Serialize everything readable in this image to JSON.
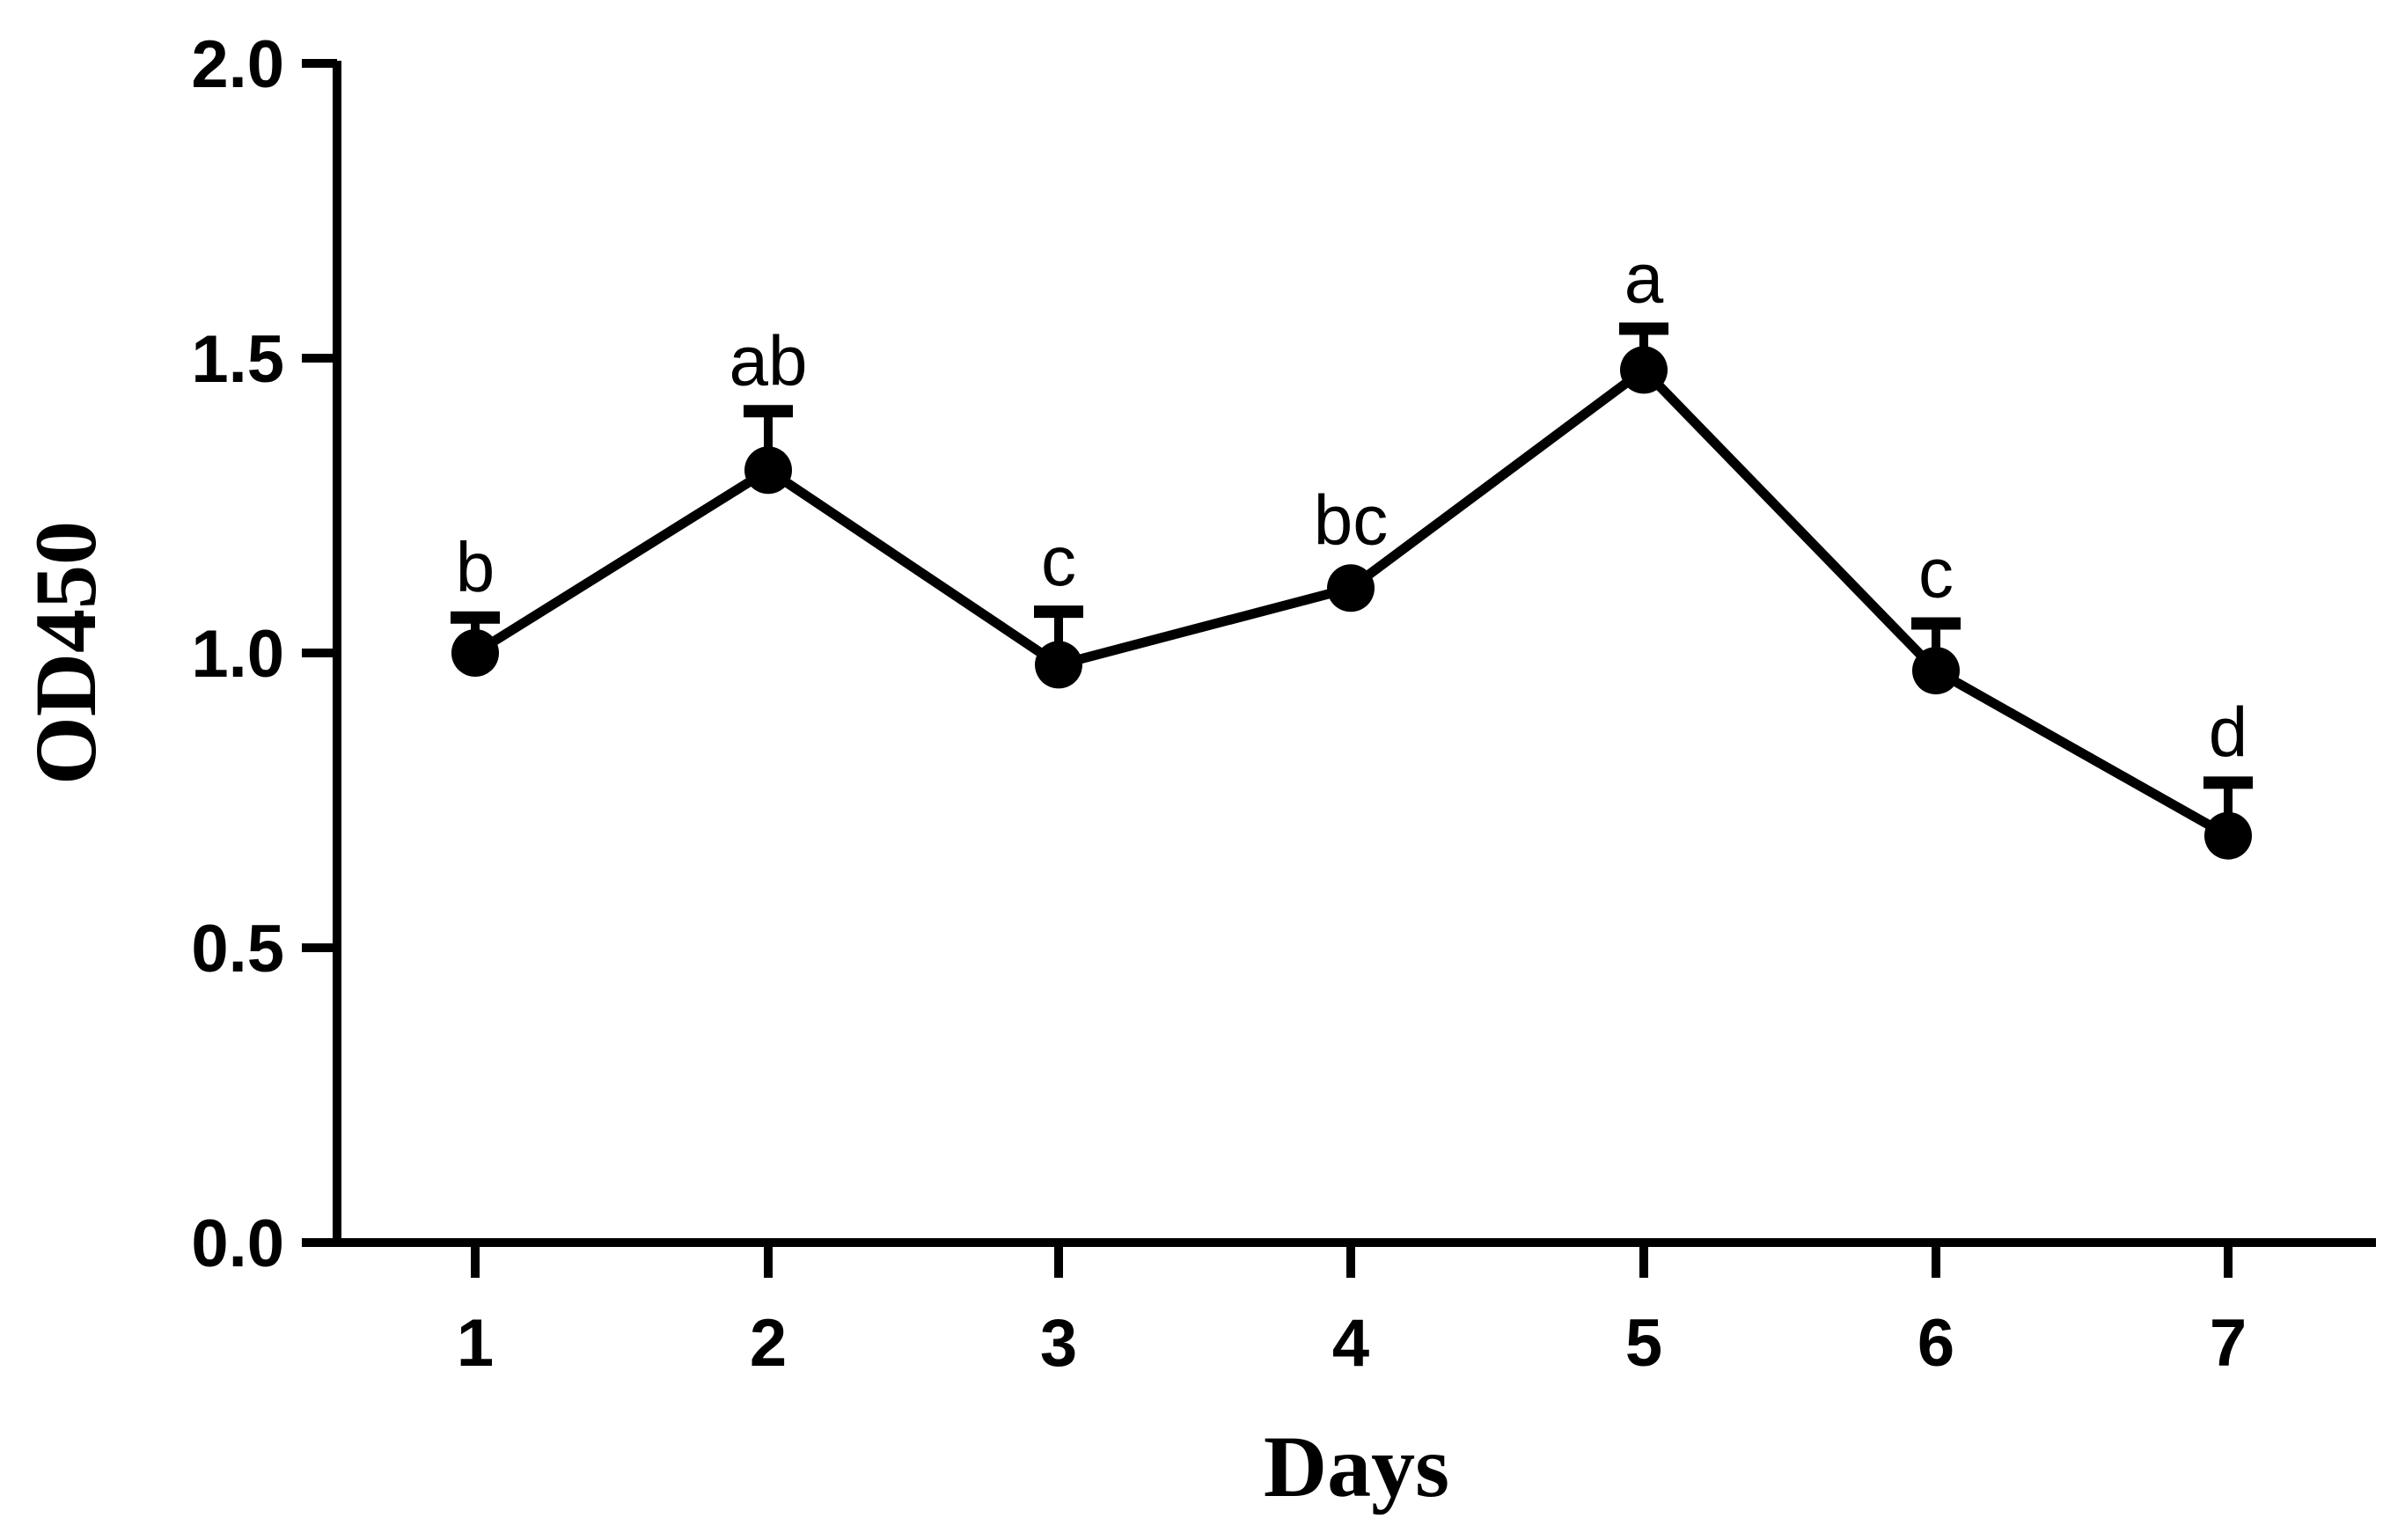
{
  "chart_data": {
    "type": "line",
    "title": "",
    "xlabel": "Days",
    "ylabel": "OD450",
    "x": [
      1,
      2,
      3,
      4,
      5,
      6,
      7
    ],
    "x_tick_labels": [
      "1",
      "2",
      "3",
      "4",
      "5",
      "6",
      "7"
    ],
    "y_tick_labels": [
      "0.0",
      "0.5",
      "1.0",
      "1.5",
      "2.0"
    ],
    "y_ticks": [
      0.0,
      0.5,
      1.0,
      1.5,
      2.0
    ],
    "ylim": [
      0.0,
      2.0
    ],
    "grid": false,
    "series": [
      {
        "values": [
          1.0,
          1.31,
          0.98,
          1.11,
          1.48,
          0.97,
          0.69
        ],
        "error_upper": [
          0.06,
          0.1,
          0.09,
          0.0,
          0.07,
          0.08,
          0.09
        ],
        "significance_labels": [
          "b",
          "ab",
          "c",
          "bc",
          "a",
          "c",
          "d"
        ],
        "color": "#000000",
        "marker": "circle"
      }
    ]
  }
}
